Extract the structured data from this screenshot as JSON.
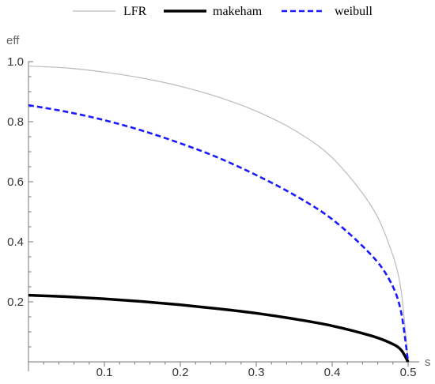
{
  "chart_data": {
    "type": "line",
    "xlabel": "s",
    "ylabel": "eff",
    "xlim": [
      0,
      0.5
    ],
    "ylim": [
      0,
      1.0
    ],
    "x_ticks": [
      "0.1",
      "0.2",
      "0.3",
      "0.4",
      "0.5"
    ],
    "y_ticks": [
      "0.2",
      "0.4",
      "0.6",
      "0.8",
      "1.0"
    ],
    "grid": false,
    "legend_position": "top-center",
    "series": [
      {
        "name": "LFR",
        "color": "#bbbbbb",
        "style": "solid-thin",
        "x": [
          0,
          0.05,
          0.1,
          0.15,
          0.2,
          0.25,
          0.3,
          0.35,
          0.4,
          0.45,
          0.475,
          0.49,
          0.5
        ],
        "y": [
          0.985,
          0.979,
          0.965,
          0.945,
          0.918,
          0.882,
          0.835,
          0.772,
          0.68,
          0.525,
          0.39,
          0.25,
          0.0
        ]
      },
      {
        "name": "makeham",
        "color": "#000000",
        "style": "solid-thick",
        "x": [
          0,
          0.05,
          0.1,
          0.15,
          0.2,
          0.25,
          0.3,
          0.35,
          0.4,
          0.45,
          0.475,
          0.49,
          0.5
        ],
        "y": [
          0.222,
          0.217,
          0.21,
          0.201,
          0.19,
          0.177,
          0.162,
          0.143,
          0.12,
          0.088,
          0.065,
          0.042,
          0.0
        ]
      },
      {
        "name": "weibull",
        "color": "#1a1aff",
        "style": "dashed",
        "x": [
          0,
          0.05,
          0.1,
          0.15,
          0.2,
          0.25,
          0.3,
          0.35,
          0.4,
          0.45,
          0.475,
          0.49,
          0.5
        ],
        "y": [
          0.855,
          0.833,
          0.805,
          0.77,
          0.728,
          0.68,
          0.622,
          0.556,
          0.475,
          0.36,
          0.275,
          0.175,
          0.0
        ]
      }
    ]
  }
}
